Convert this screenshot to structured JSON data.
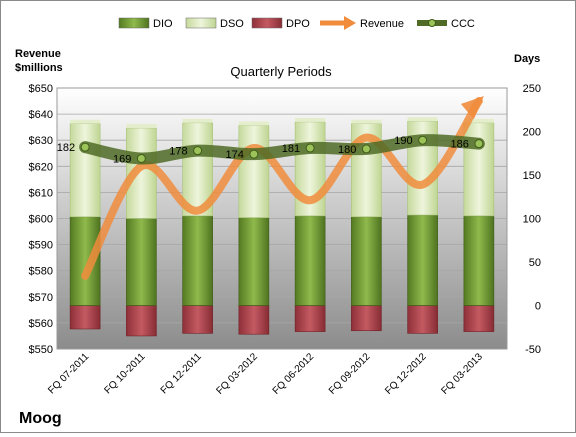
{
  "chart_data": {
    "type": "bar",
    "title": "Quarterly Periods",
    "company": "Moog",
    "left_axis_title": [
      "Revenue",
      "$millions"
    ],
    "right_axis_title": "Days",
    "legend_position": "top",
    "grid": true,
    "categories": [
      "FQ 07-2011",
      "FQ 10-2011",
      "FQ 12-2011",
      "FQ 03-2012",
      "FQ 06-2012",
      "FQ 09-2012",
      "FQ 12-2012",
      "FQ 03-2013"
    ],
    "left_ylim": [
      550,
      650
    ],
    "left_ticks": [
      "$550",
      "$560",
      "$570",
      "$580",
      "$590",
      "$600",
      "$610",
      "$620",
      "$630",
      "$640",
      "$650"
    ],
    "right_ylim": [
      -50,
      250
    ],
    "right_ticks": [
      "-50",
      "0",
      "50",
      "100",
      "150",
      "200",
      "250"
    ],
    "legend": [
      {
        "name": "DIO",
        "color": "#6f9a30",
        "kind": "bar"
      },
      {
        "name": "DSO",
        "color": "#d6e6b0",
        "kind": "bar"
      },
      {
        "name": "DPO",
        "color": "#a8424a",
        "kind": "bar"
      },
      {
        "name": "Revenue",
        "color": "#f08c3c",
        "kind": "arrow"
      },
      {
        "name": "CCC",
        "color": "#4f6b26",
        "kind": "line"
      }
    ],
    "series": [
      {
        "name": "DIO",
        "axis": "right",
        "values": [
          102,
          100,
          103,
          101,
          103,
          102,
          104,
          103
        ]
      },
      {
        "name": "DSO",
        "axis": "right",
        "values": [
          107,
          104,
          107,
          106,
          108,
          107,
          108,
          107
        ]
      },
      {
        "name": "DPO",
        "axis": "right",
        "values": [
          -27,
          -35,
          -32,
          -33,
          -30,
          -29,
          -32,
          -30
        ]
      },
      {
        "name": "Revenue",
        "axis": "left",
        "values": [
          578,
          620,
          603,
          627,
          607,
          631,
          613,
          645
        ]
      },
      {
        "name": "CCC",
        "axis": "right",
        "values": [
          182,
          169,
          178,
          174,
          181,
          180,
          190,
          186
        ],
        "labels": [
          "182",
          "169",
          "178",
          "174",
          "181",
          "180",
          "190",
          "186"
        ]
      }
    ]
  }
}
